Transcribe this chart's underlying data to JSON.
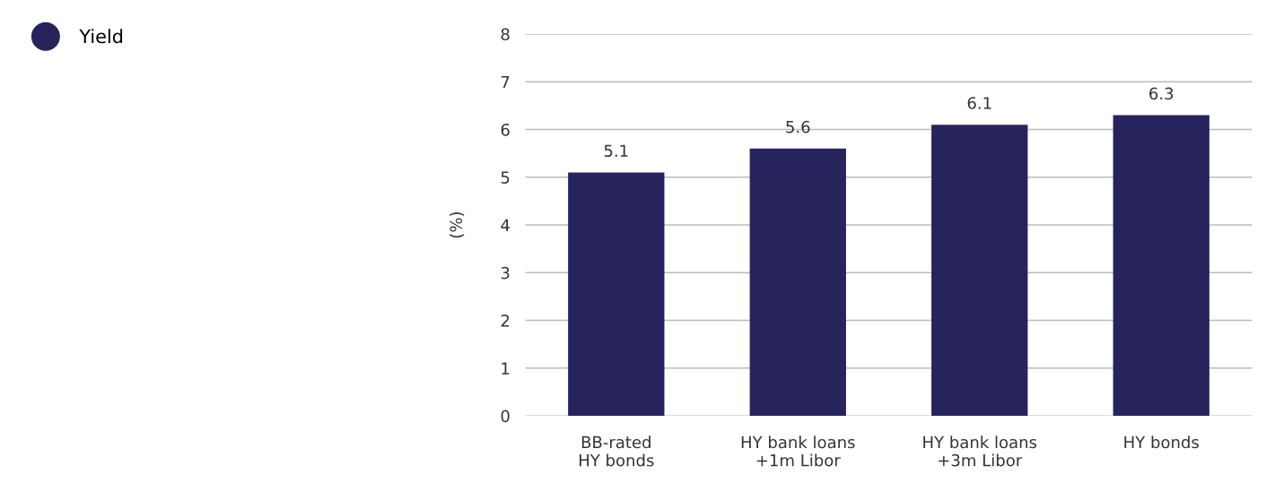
{
  "chart_data": {
    "type": "bar",
    "ylabel": "(%)",
    "categories": [
      "BB-rated\nHY bonds",
      "HY bank loans\n+1m Libor",
      "HY bank loans\n+3m Libor",
      "HY bonds"
    ],
    "series": [
      {
        "name": "Yield",
        "color": "#27235c",
        "values": [
          5.1,
          5.6,
          6.1,
          6.3
        ]
      }
    ],
    "ylim": [
      0,
      8
    ],
    "yticks": [
      0,
      1,
      2,
      3,
      4,
      5,
      6,
      7,
      8
    ],
    "grid": "y",
    "data_labels": true,
    "legend": "top left"
  }
}
